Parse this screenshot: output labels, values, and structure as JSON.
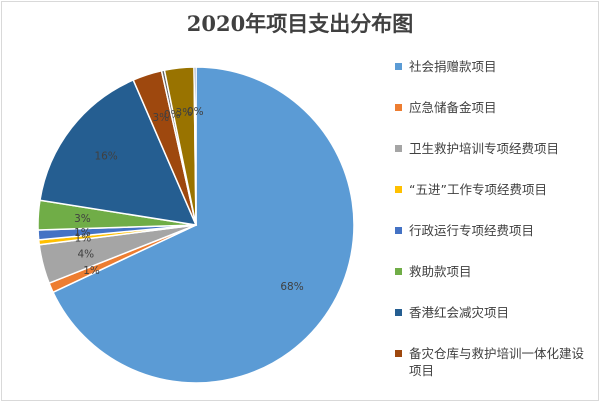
{
  "chart_data": {
    "type": "pie",
    "title": "2020年项目支出分布图",
    "legend_position": "right",
    "slices": [
      {
        "name": "社会捐赠款项目",
        "value": 68,
        "label": "68%",
        "color": "#5b9bd5"
      },
      {
        "name": "应急储备金项目",
        "value": 1,
        "label": "1%",
        "color": "#ed7d31"
      },
      {
        "name": "卫生救护培训专项经费项目",
        "value": 4,
        "label": "4%",
        "color": "#a5a5a5"
      },
      {
        "name": "“五进”工作专项经费项目",
        "value": 0.5,
        "label": "1%",
        "color": "#ffc000"
      },
      {
        "name": "行政运行专项经费项目",
        "value": 1,
        "label": "1%",
        "color": "#4472c4"
      },
      {
        "name": "救助款项目",
        "value": 3,
        "label": "3%",
        "color": "#70ad47"
      },
      {
        "name": "香港红会减灾项目",
        "value": 16,
        "label": "16%",
        "color": "#255e91"
      },
      {
        "name": "备灾仓库与救护培训一体化建设项目",
        "value": 3,
        "label": "3%",
        "color": "#9e480e"
      },
      {
        "name": "",
        "value": 0.3,
        "label": "0%",
        "color": "#636363"
      },
      {
        "name": "",
        "value": 3,
        "label": "3%",
        "color": "#997300"
      },
      {
        "name": "",
        "value": 0.2,
        "label": "0%",
        "color": "#264478"
      }
    ]
  }
}
